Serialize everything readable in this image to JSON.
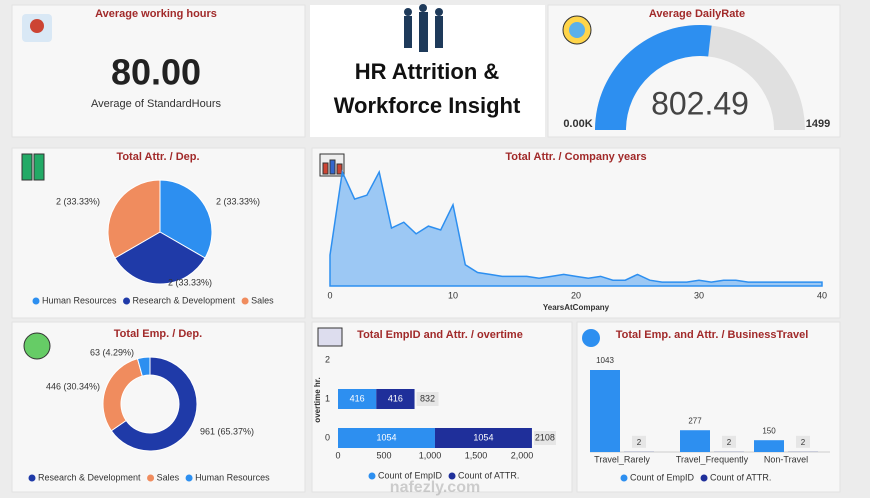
{
  "header": {
    "title_line1": "HR Attrition &",
    "title_line2": "Workforce Insight"
  },
  "card": {
    "title": "Average working hours",
    "value": "80.00",
    "label": "Average of StandardHours"
  },
  "watermark": "nafezly.com",
  "chart_data": [
    {
      "type": "gauge",
      "title": "Average DailyRate",
      "value": 802.49,
      "ylim": [
        0,
        1499
      ],
      "yticks": [
        {
          "value": 0,
          "label": "0.00K"
        },
        1499
      ],
      "color": "#2d8ff0",
      "track_color": "#e0e0e0"
    },
    {
      "type": "pie",
      "title": "Total Attr. / Dep.",
      "categories": [
        "Human Resources",
        "Research & Development",
        "Sales"
      ],
      "values": [
        2,
        2,
        2
      ],
      "value_labels": [
        "2 (33.33%)",
        "2 (33.33%)",
        "2 (33.33%)"
      ],
      "colors": [
        "#2d8ff0",
        "#1f3aa8",
        "#f08c5e"
      ]
    },
    {
      "type": "area",
      "title": "Total Attr. / Company years",
      "x_label": "YearsAtCompany",
      "x": [
        0,
        1,
        2,
        3,
        4,
        5,
        6,
        7,
        8,
        9,
        10,
        11,
        12,
        13,
        14,
        15,
        16,
        17,
        18,
        19,
        20,
        21,
        22,
        23,
        24,
        25,
        26,
        27,
        28,
        29,
        30,
        31,
        32,
        33,
        34,
        35,
        36,
        37,
        38,
        39,
        40
      ],
      "values": [
        16,
        59,
        45,
        47,
        59,
        30,
        33,
        27,
        31,
        29,
        42,
        11,
        7,
        6,
        5,
        5,
        5,
        4,
        5,
        6,
        5,
        4,
        5,
        3,
        3,
        6,
        3,
        2,
        2,
        2,
        3,
        2,
        3,
        3,
        2,
        2,
        2,
        2,
        2,
        2,
        2
      ],
      "xlim": [
        0,
        40
      ],
      "xticks": [
        0,
        10,
        20,
        30,
        40
      ],
      "color": "#2d8ff0"
    },
    {
      "type": "donut",
      "title": "Total Emp. / Dep.",
      "categories": [
        "Research & Development",
        "Sales",
        "Human Resources"
      ],
      "values": [
        961,
        446,
        63
      ],
      "value_labels": [
        "961 (65.37%)",
        "446 (30.34%)",
        "63 (4.29%)"
      ],
      "colors": [
        "#1f3aa8",
        "#f08c5e",
        "#2d8ff0"
      ]
    },
    {
      "type": "hbar",
      "title": "Total EmpID and Attr. / overtime",
      "y_label": "overtime hr.",
      "categories": [
        0,
        1,
        2
      ],
      "series": [
        {
          "name": "Count of EmpID",
          "color": "#2d8ff0",
          "values": [
            1054,
            416,
            null
          ]
        },
        {
          "name": "Count of ATTR.",
          "color": "#1f2f9a",
          "values": [
            1054,
            416,
            null
          ]
        }
      ],
      "totals": [
        2108,
        832,
        null
      ],
      "xlim": [
        0,
        2000
      ],
      "xticks": [
        0,
        500,
        {
          "value": 1000,
          "label": "1,000"
        },
        {
          "value": 1500,
          "label": "1,500"
        },
        {
          "value": 2000,
          "label": "2,000"
        }
      ]
    },
    {
      "type": "bar",
      "title": "Total Emp. and Attr. / BusinessTravel",
      "categories": [
        "Travel_Rarely",
        "Travel_Frequently",
        "Non-Travel"
      ],
      "series": [
        {
          "name": "Count of EmpID",
          "color": "#2d8ff0",
          "values": [
            1043,
            277,
            150
          ]
        },
        {
          "name": "Count of ATTR.",
          "color": "#1f2f9a",
          "values": [
            2,
            2,
            2
          ]
        }
      ]
    }
  ]
}
